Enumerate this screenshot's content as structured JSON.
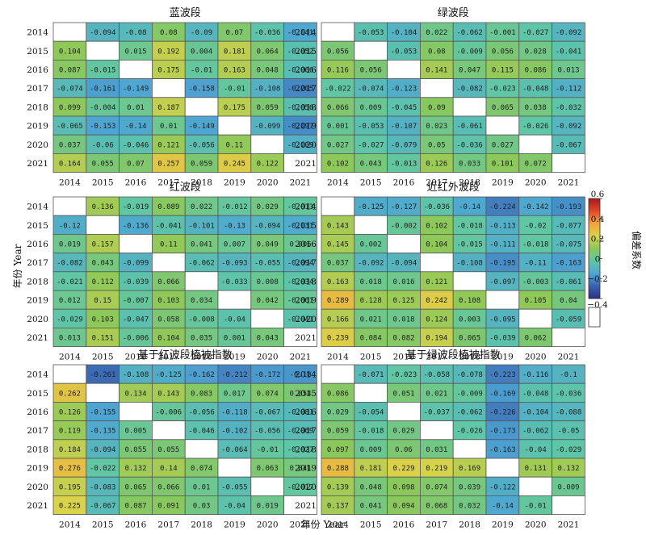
{
  "figure": {
    "ylabel": "年份 Year",
    "xlabel": "年份 Year",
    "colorbar_label": "偏差系数",
    "colorbar_ticks": [
      "0.6",
      "0.4",
      "0.2",
      "0",
      "−0.2",
      "−0.4"
    ]
  },
  "chart_data": [
    {
      "type": "heatmap",
      "title": "蓝波段",
      "x": [
        "2014",
        "2015",
        "2016",
        "2017",
        "2018",
        "2019",
        "2020",
        "2021"
      ],
      "y": [
        "2014",
        "2015",
        "2016",
        "2017",
        "2018",
        "2019",
        "2020",
        "2021"
      ],
      "values": [
        [
          null,
          -0.094,
          -0.08,
          0.08,
          -0.09,
          0.07,
          -0.036,
          -0.141
        ],
        [
          0.104,
          null,
          0.015,
          0.192,
          0.004,
          0.181,
          0.064,
          -0.052
        ],
        [
          0.087,
          -0.015,
          null,
          0.175,
          -0.01,
          0.163,
          0.048,
          -0.066
        ],
        [
          -0.074,
          -0.161,
          -0.149,
          null,
          -0.158,
          -0.01,
          -0.108,
          -0.205
        ],
        [
          0.099,
          -0.004,
          0.01,
          0.187,
          null,
          0.175,
          0.059,
          -0.056
        ],
        [
          -0.065,
          -0.153,
          -0.14,
          0.01,
          -0.149,
          null,
          -0.099,
          -0.197
        ],
        [
          0.037,
          -0.06,
          -0.046,
          0.121,
          -0.056,
          0.11,
          null,
          -0.109
        ],
        [
          0.164,
          0.055,
          0.07,
          0.257,
          0.059,
          0.245,
          0.122,
          null
        ]
      ]
    },
    {
      "type": "heatmap",
      "title": "绿波段",
      "x": [
        "2014",
        "2015",
        "2016",
        "2017",
        "2018",
        "2019",
        "2020",
        "2021"
      ],
      "y": [
        "2014",
        "2015",
        "2016",
        "2017",
        "2018",
        "2019",
        "2020",
        "2021"
      ],
      "values": [
        [
          null,
          -0.053,
          -0.104,
          0.022,
          -0.062,
          -0.001,
          -0.027,
          -0.092
        ],
        [
          0.056,
          null,
          -0.053,
          0.08,
          -0.009,
          0.056,
          0.028,
          -0.041
        ],
        [
          0.116,
          0.056,
          null,
          0.141,
          0.047,
          0.115,
          0.086,
          0.013
        ],
        [
          -0.022,
          -0.074,
          -0.123,
          null,
          -0.082,
          -0.023,
          -0.048,
          -0.112
        ],
        [
          0.066,
          0.009,
          -0.045,
          0.09,
          null,
          0.065,
          0.038,
          -0.032
        ],
        [
          0.001,
          -0.053,
          -0.107,
          0.023,
          -0.061,
          null,
          -0.026,
          -0.092
        ],
        [
          0.027,
          -0.027,
          -0.079,
          0.05,
          -0.036,
          0.027,
          null,
          -0.067
        ],
        [
          0.102,
          0.043,
          -0.013,
          0.126,
          0.033,
          0.101,
          0.072,
          null
        ]
      ]
    },
    {
      "type": "heatmap",
      "title": "红波段",
      "x": [
        "2014",
        "2015",
        "2016",
        "2017",
        "2018",
        "2019",
        "2020",
        "2021"
      ],
      "y": [
        "2014",
        "2015",
        "2016",
        "2017",
        "2018",
        "2019",
        "2020",
        "2021"
      ],
      "values": [
        [
          null,
          0.136,
          -0.019,
          0.089,
          0.022,
          -0.012,
          0.029,
          -0.013
        ],
        [
          -0.12,
          null,
          -0.136,
          -0.041,
          -0.101,
          -0.13,
          -0.094,
          -0.131
        ],
        [
          0.019,
          0.157,
          null,
          0.11,
          0.041,
          0.007,
          0.049,
          0.006
        ],
        [
          -0.082,
          0.043,
          -0.099,
          null,
          -0.062,
          -0.093,
          -0.055,
          -0.094
        ],
        [
          -0.021,
          0.112,
          -0.039,
          0.066,
          null,
          -0.033,
          0.008,
          -0.034
        ],
        [
          0.012,
          0.15,
          -0.007,
          0.103,
          0.034,
          null,
          0.042,
          -0.001
        ],
        [
          -0.029,
          0.103,
          -0.047,
          0.058,
          -0.008,
          -0.04,
          null,
          -0.041
        ],
        [
          0.013,
          0.151,
          -0.006,
          0.104,
          0.035,
          0.001,
          0.043,
          null
        ]
      ]
    },
    {
      "type": "heatmap",
      "title": "近红外波段",
      "x": [
        "2014",
        "2015",
        "2016",
        "2017",
        "2018",
        "2019",
        "2020",
        "2021"
      ],
      "y": [
        "2014",
        "2015",
        "2016",
        "2017",
        "2018",
        "2019",
        "2020",
        "2021"
      ],
      "values": [
        [
          null,
          -0.125,
          -0.127,
          -0.036,
          -0.14,
          -0.224,
          -0.142,
          -0.193
        ],
        [
          0.143,
          null,
          -0.002,
          0.102,
          -0.018,
          -0.113,
          -0.02,
          -0.077
        ],
        [
          0.145,
          0.002,
          null,
          0.104,
          -0.015,
          -0.111,
          -0.018,
          -0.075
        ],
        [
          0.037,
          -0.092,
          -0.094,
          null,
          -0.108,
          -0.195,
          -0.11,
          -0.163
        ],
        [
          0.163,
          0.018,
          0.016,
          0.121,
          null,
          -0.097,
          -0.003,
          -0.061
        ],
        [
          0.289,
          0.128,
          0.125,
          0.242,
          0.108,
          null,
          0.105,
          0.04
        ],
        [
          0.166,
          0.021,
          0.018,
          0.124,
          0.003,
          -0.095,
          null,
          -0.059
        ],
        [
          0.239,
          0.084,
          0.082,
          0.194,
          0.065,
          -0.039,
          0.062,
          null
        ]
      ]
    },
    {
      "type": "heatmap",
      "title": "基于红波段植被指数",
      "x": [
        "2014",
        "2015",
        "2016",
        "2017",
        "2018",
        "2019",
        "2020",
        "2021"
      ],
      "y": [
        "2014",
        "2015",
        "2016",
        "2017",
        "2018",
        "2019",
        "2020",
        "2021"
      ],
      "values": [
        [
          null,
          -0.261,
          -0.108,
          -0.125,
          -0.162,
          -0.212,
          -0.172,
          -0.18
        ],
        [
          0.262,
          null,
          0.134,
          0.143,
          0.083,
          0.017,
          0.074,
          0.054
        ],
        [
          0.126,
          -0.155,
          null,
          -0.006,
          -0.056,
          -0.118,
          -0.067,
          -0.081
        ],
        [
          0.119,
          -0.135,
          0.005,
          null,
          -0.046,
          -0.102,
          -0.056,
          -0.069
        ],
        [
          0.184,
          -0.094,
          0.055,
          0.055,
          null,
          -0.064,
          -0.01,
          -0.027
        ],
        [
          0.276,
          -0.022,
          0.132,
          0.14,
          0.074,
          null,
          0.063,
          0.041
        ],
        [
          0.195,
          -0.083,
          0.065,
          0.066,
          0.01,
          -0.055,
          null,
          -0.017
        ],
        [
          0.225,
          -0.067,
          0.087,
          0.091,
          0.03,
          -0.04,
          0.019,
          null
        ]
      ]
    },
    {
      "type": "heatmap",
      "title": "基于绿波段植被指数",
      "x": [
        "2014",
        "2015",
        "2016",
        "2017",
        "2018",
        "2019",
        "2020",
        "2021"
      ],
      "y": [
        "2014",
        "2015",
        "2016",
        "2017",
        "2018",
        "2019",
        "2020",
        "2021"
      ],
      "values": [
        [
          null,
          -0.071,
          -0.023,
          -0.058,
          -0.078,
          -0.223,
          -0.116,
          -0.1
        ],
        [
          0.086,
          null,
          0.051,
          0.021,
          -0.009,
          -0.169,
          -0.048,
          -0.036
        ],
        [
          0.029,
          -0.054,
          null,
          -0.037,
          -0.062,
          -0.226,
          -0.104,
          -0.088
        ],
        [
          0.059,
          -0.018,
          0.029,
          null,
          -0.026,
          -0.173,
          -0.062,
          -0.05
        ],
        [
          0.097,
          0.009,
          0.06,
          0.031,
          null,
          -0.163,
          -0.04,
          -0.029
        ],
        [
          0.288,
          0.181,
          0.229,
          0.219,
          0.169,
          null,
          0.131,
          0.132
        ],
        [
          0.139,
          0.048,
          0.098,
          0.074,
          0.039,
          -0.122,
          null,
          0.009
        ],
        [
          0.137,
          0.041,
          0.094,
          0.068,
          0.032,
          -0.14,
          -0.01,
          null
        ]
      ]
    }
  ],
  "colorscale": {
    "min": -0.4,
    "max": 0.6,
    "stops": [
      "#2b2f86",
      "#3a62b0",
      "#4ea6d3",
      "#5fc6a6",
      "#8cc85a",
      "#d9d24a",
      "#f5a33a",
      "#e0472b",
      "#a8181e"
    ],
    "missing_color": "#ffffff"
  }
}
